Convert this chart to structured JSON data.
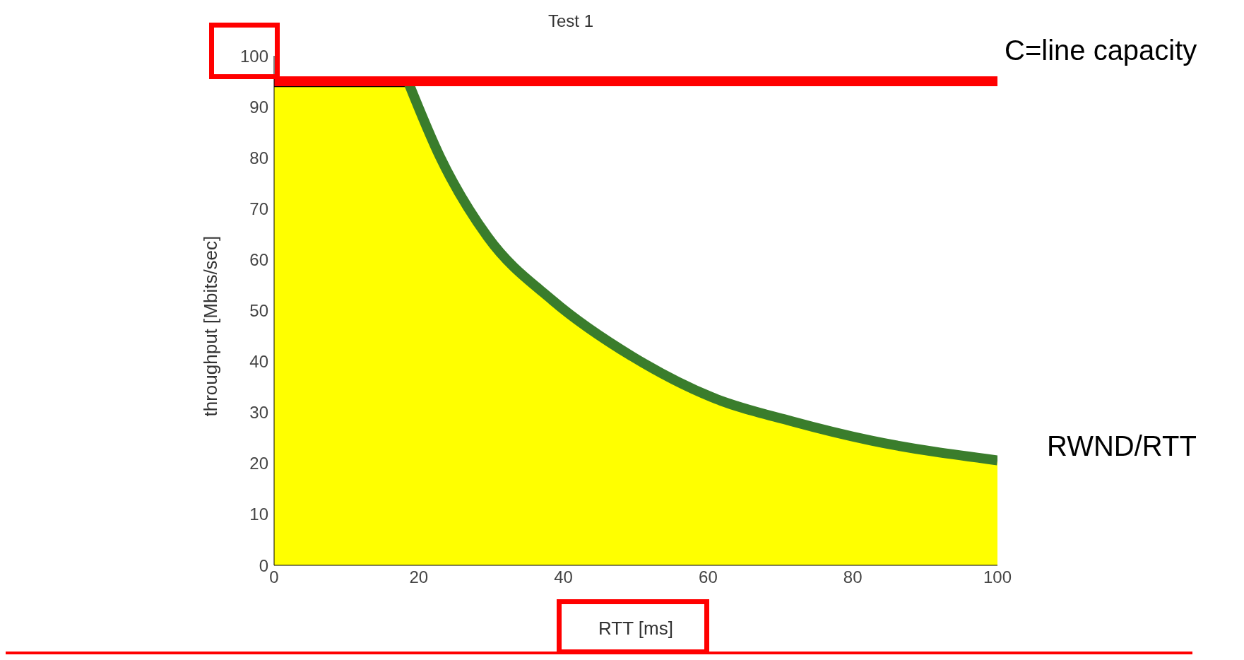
{
  "chart_data": {
    "type": "area",
    "title": "Test 1",
    "xlabel": "RTT [ms]",
    "ylabel": "throughput [Mbits/sec]",
    "x": [
      0,
      10,
      18.5,
      23,
      29.5,
      38.5,
      49.5,
      60.5,
      71.5,
      82.5,
      100
    ],
    "series": [
      {
        "color": "#ffff00",
        "values": [
          94,
          94,
          94,
          80,
          64.5,
          52,
          41,
          33,
          28.3,
          24.5,
          20.6
        ]
      },
      {
        "type": "line",
        "name": "RWND/RTT",
        "color": "#3a7d2c",
        "values": [
          null,
          null,
          95,
          80,
          64.5,
          52,
          41,
          33,
          28.3,
          24.5,
          20.6
        ]
      }
    ],
    "xlim": [
      0,
      100
    ],
    "xticks": [
      0,
      20,
      40,
      60,
      80,
      100
    ],
    "ylim": [
      0,
      100
    ],
    "yticks": [
      0,
      10,
      20,
      30,
      40,
      50,
      60,
      70,
      80,
      90,
      100
    ],
    "ref_lines": [
      {
        "axis": "y",
        "value": 95,
        "label": "C=line capacity",
        "color": "#ff0000"
      }
    ]
  }
}
